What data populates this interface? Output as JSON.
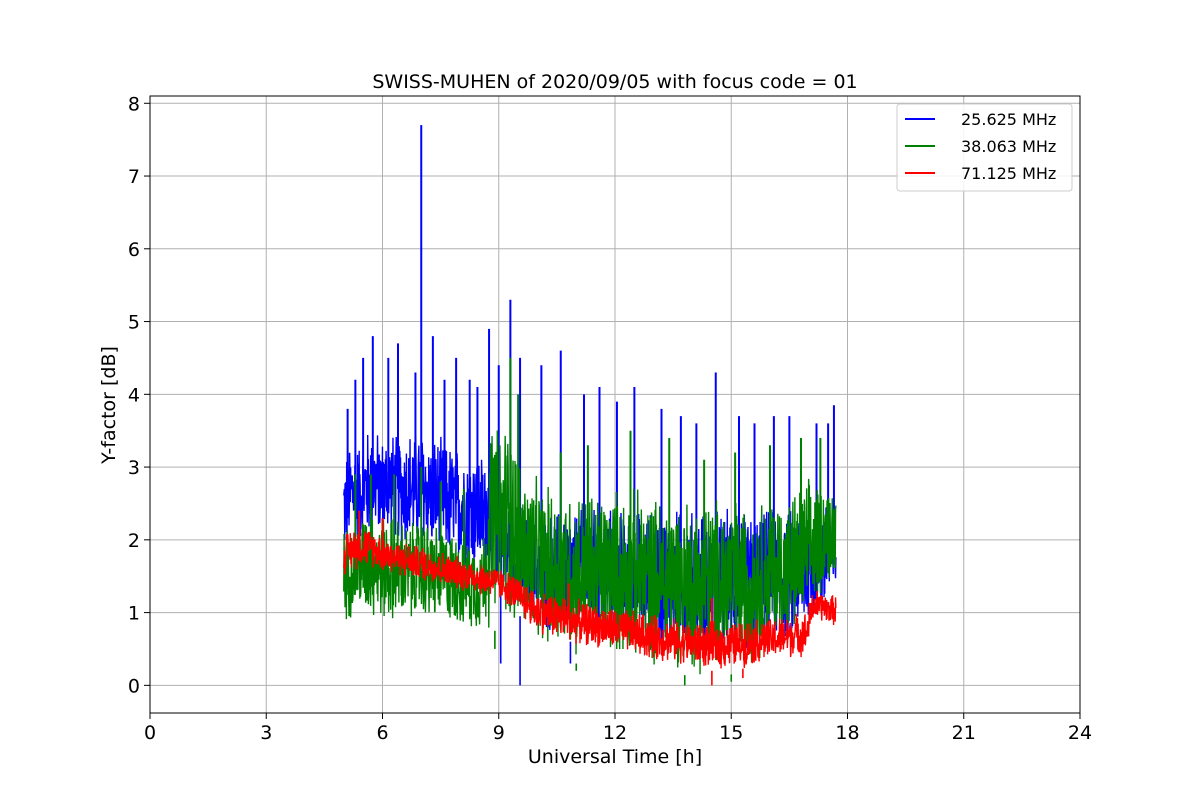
{
  "chart_data": {
    "type": "line",
    "title": "SWISS-MUHEN of 2020/09/05 with focus code = 01",
    "xlabel": "Universal Time [h]",
    "ylabel": "Y-factor [dB]",
    "xlim": [
      0,
      24
    ],
    "ylim": [
      -0.38,
      8.1
    ],
    "x_ticks": [
      0,
      3,
      6,
      9,
      12,
      15,
      18,
      21,
      24
    ],
    "y_ticks": [
      0,
      1,
      2,
      3,
      4,
      5,
      6,
      7,
      8
    ],
    "grid": true,
    "legend_position": "top-right",
    "series": [
      {
        "name": "25.625 MHz",
        "color": "#0000ff",
        "x": [
          5.0,
          5.2,
          5.4,
          5.6,
          5.8,
          6.0,
          6.2,
          6.4,
          6.6,
          6.8,
          7.0,
          7.2,
          7.4,
          7.6,
          7.8,
          8.0,
          8.2,
          8.4,
          8.6,
          8.8,
          9.0,
          9.2,
          9.4,
          9.6,
          9.8,
          10.0,
          10.5,
          11.0,
          11.5,
          12.0,
          12.5,
          13.0,
          13.5,
          14.0,
          14.5,
          15.0,
          15.5,
          16.0,
          16.5,
          17.0,
          17.4,
          17.7
        ],
        "low": [
          1.7,
          1.8,
          1.9,
          1.9,
          2.0,
          1.9,
          1.9,
          1.9,
          1.8,
          1.8,
          1.8,
          1.8,
          1.7,
          1.7,
          1.6,
          1.6,
          1.5,
          1.5,
          1.4,
          1.4,
          1.3,
          1.2,
          1.1,
          0.9,
          0.8,
          0.7,
          0.6,
          0.6,
          0.6,
          0.5,
          0.5,
          0.4,
          0.4,
          0.4,
          0.4,
          0.4,
          0.4,
          0.5,
          0.5,
          0.7,
          0.9,
          0.9
        ],
        "high": [
          3.2,
          3.5,
          3.4,
          3.6,
          3.6,
          3.5,
          3.6,
          3.5,
          3.6,
          3.6,
          3.6,
          3.5,
          3.5,
          3.4,
          3.4,
          3.4,
          3.4,
          3.3,
          3.3,
          3.4,
          3.2,
          2.9,
          2.4,
          2.4,
          2.4,
          2.4,
          2.5,
          2.5,
          2.5,
          2.5,
          2.5,
          2.5,
          2.5,
          2.5,
          2.5,
          2.5,
          2.5,
          2.5,
          2.5,
          2.6,
          2.7,
          2.7
        ],
        "spikes": [
          [
            5.1,
            3.8
          ],
          [
            5.3,
            4.2
          ],
          [
            5.5,
            4.5
          ],
          [
            5.75,
            4.8
          ],
          [
            6.15,
            4.5
          ],
          [
            6.4,
            4.7
          ],
          [
            6.85,
            4.3
          ],
          [
            7.0,
            7.7
          ],
          [
            7.3,
            4.8
          ],
          [
            7.6,
            4.2
          ],
          [
            7.9,
            4.5
          ],
          [
            8.25,
            4.2
          ],
          [
            8.45,
            4.1
          ],
          [
            8.75,
            4.9
          ],
          [
            9.0,
            4.4
          ],
          [
            9.3,
            5.3
          ],
          [
            9.55,
            4.5
          ],
          [
            10.1,
            4.4
          ],
          [
            10.6,
            4.6
          ],
          [
            11.2,
            4.0
          ],
          [
            11.6,
            4.1
          ],
          [
            12.05,
            3.9
          ],
          [
            12.5,
            4.1
          ],
          [
            13.2,
            3.8
          ],
          [
            13.7,
            3.7
          ],
          [
            14.1,
            3.6
          ],
          [
            14.6,
            4.3
          ],
          [
            15.2,
            3.7
          ],
          [
            15.6,
            3.6
          ],
          [
            16.1,
            3.7
          ],
          [
            16.5,
            3.7
          ],
          [
            17.2,
            3.6
          ],
          [
            17.5,
            3.6
          ],
          [
            17.65,
            3.85
          ]
        ],
        "dips": [
          [
            9.05,
            0.3
          ],
          [
            9.55,
            0.0
          ],
          [
            10.85,
            0.3
          ],
          [
            13.2,
            0.4
          ]
        ]
      },
      {
        "name": "38.063 MHz",
        "color": "#008000",
        "x": [
          5.0,
          5.2,
          5.4,
          5.6,
          5.8,
          6.0,
          6.2,
          6.4,
          6.6,
          6.8,
          7.0,
          7.2,
          7.4,
          7.6,
          7.8,
          8.0,
          8.2,
          8.4,
          8.6,
          8.8,
          9.0,
          9.2,
          9.4,
          9.6,
          9.8,
          10.0,
          10.5,
          11.0,
          11.5,
          12.0,
          12.5,
          13.0,
          13.5,
          14.0,
          14.5,
          15.0,
          15.5,
          16.0,
          16.5,
          17.0,
          17.4,
          17.7
        ],
        "low": [
          0.85,
          0.85,
          0.9,
          0.9,
          0.85,
          0.8,
          0.8,
          0.8,
          0.8,
          0.8,
          0.85,
          0.8,
          0.8,
          0.8,
          0.75,
          0.75,
          0.7,
          0.7,
          0.7,
          0.7,
          0.8,
          0.8,
          0.7,
          0.6,
          0.5,
          0.5,
          0.4,
          0.3,
          0.3,
          0.3,
          0.25,
          0.2,
          0.2,
          0.1,
          0.1,
          0.15,
          0.2,
          0.4,
          0.5,
          0.8,
          1.3,
          1.4
        ],
        "high": [
          2.2,
          2.3,
          2.4,
          2.5,
          2.5,
          2.4,
          2.4,
          2.4,
          2.3,
          2.3,
          2.4,
          2.3,
          2.3,
          2.2,
          2.2,
          2.2,
          2.1,
          2.1,
          2.1,
          3.8,
          3.7,
          3.8,
          3.6,
          3.1,
          3.0,
          2.9,
          2.8,
          2.8,
          2.8,
          2.8,
          2.8,
          2.7,
          2.7,
          2.7,
          2.7,
          2.7,
          2.6,
          2.7,
          2.7,
          2.9,
          2.9,
          2.8
        ],
        "spikes": [
          [
            5.3,
            2.9
          ],
          [
            5.7,
            2.9
          ],
          [
            6.3,
            2.9
          ],
          [
            7.0,
            3.0
          ],
          [
            7.5,
            2.8
          ],
          [
            8.1,
            2.7
          ],
          [
            9.3,
            4.5
          ],
          [
            9.5,
            4.0
          ],
          [
            10.6,
            3.2
          ],
          [
            11.3,
            3.3
          ],
          [
            12.4,
            3.5
          ],
          [
            13.4,
            3.4
          ],
          [
            14.3,
            3.1
          ],
          [
            15.1,
            3.2
          ],
          [
            16.0,
            3.3
          ],
          [
            16.8,
            3.4
          ],
          [
            17.3,
            3.4
          ]
        ],
        "dips": [
          [
            8.9,
            0.5
          ],
          [
            11.0,
            0.2
          ],
          [
            13.8,
            0.0
          ],
          [
            15.0,
            0.05
          ]
        ]
      },
      {
        "name": "71.125 MHz",
        "color": "#ff0000",
        "x": [
          5.0,
          5.2,
          5.4,
          5.6,
          5.8,
          6.0,
          6.2,
          6.4,
          6.6,
          6.8,
          7.0,
          7.2,
          7.4,
          7.6,
          7.8,
          8.0,
          8.2,
          8.4,
          8.6,
          8.8,
          9.0,
          9.2,
          9.4,
          9.6,
          9.8,
          10.0,
          10.5,
          11.0,
          11.5,
          12.0,
          12.5,
          13.0,
          13.5,
          14.0,
          14.5,
          15.0,
          15.5,
          16.0,
          16.5,
          16.95,
          17.1,
          17.4,
          17.7
        ],
        "low": [
          1.5,
          1.55,
          1.6,
          1.6,
          1.6,
          1.55,
          1.5,
          1.5,
          1.45,
          1.45,
          1.4,
          1.4,
          1.35,
          1.35,
          1.3,
          1.3,
          1.25,
          1.25,
          1.2,
          1.2,
          1.15,
          1.1,
          1.0,
          0.9,
          0.8,
          0.7,
          0.6,
          0.55,
          0.5,
          0.45,
          0.4,
          0.3,
          0.3,
          0.25,
          0.2,
          0.2,
          0.25,
          0.3,
          0.35,
          0.4,
          0.85,
          0.85,
          0.8
        ],
        "high": [
          2.1,
          2.2,
          2.25,
          2.2,
          2.15,
          2.1,
          2.05,
          2.0,
          2.0,
          1.95,
          1.95,
          1.9,
          1.9,
          1.85,
          1.8,
          1.8,
          1.75,
          1.75,
          1.7,
          1.7,
          1.65,
          1.6,
          1.55,
          1.5,
          1.4,
          1.35,
          1.3,
          1.2,
          1.15,
          1.1,
          1.05,
          1.0,
          0.95,
          0.9,
          0.9,
          0.9,
          0.95,
          0.95,
          1.0,
          1.05,
          1.35,
          1.3,
          1.25
        ],
        "spikes": [
          [
            5.4,
            2.4
          ],
          [
            6.0,
            2.3
          ],
          [
            10.8,
            1.4
          ],
          [
            14.5,
            1.2
          ]
        ],
        "dips": [
          [
            14.5,
            0.0
          ],
          [
            15.3,
            0.1
          ]
        ]
      }
    ]
  }
}
